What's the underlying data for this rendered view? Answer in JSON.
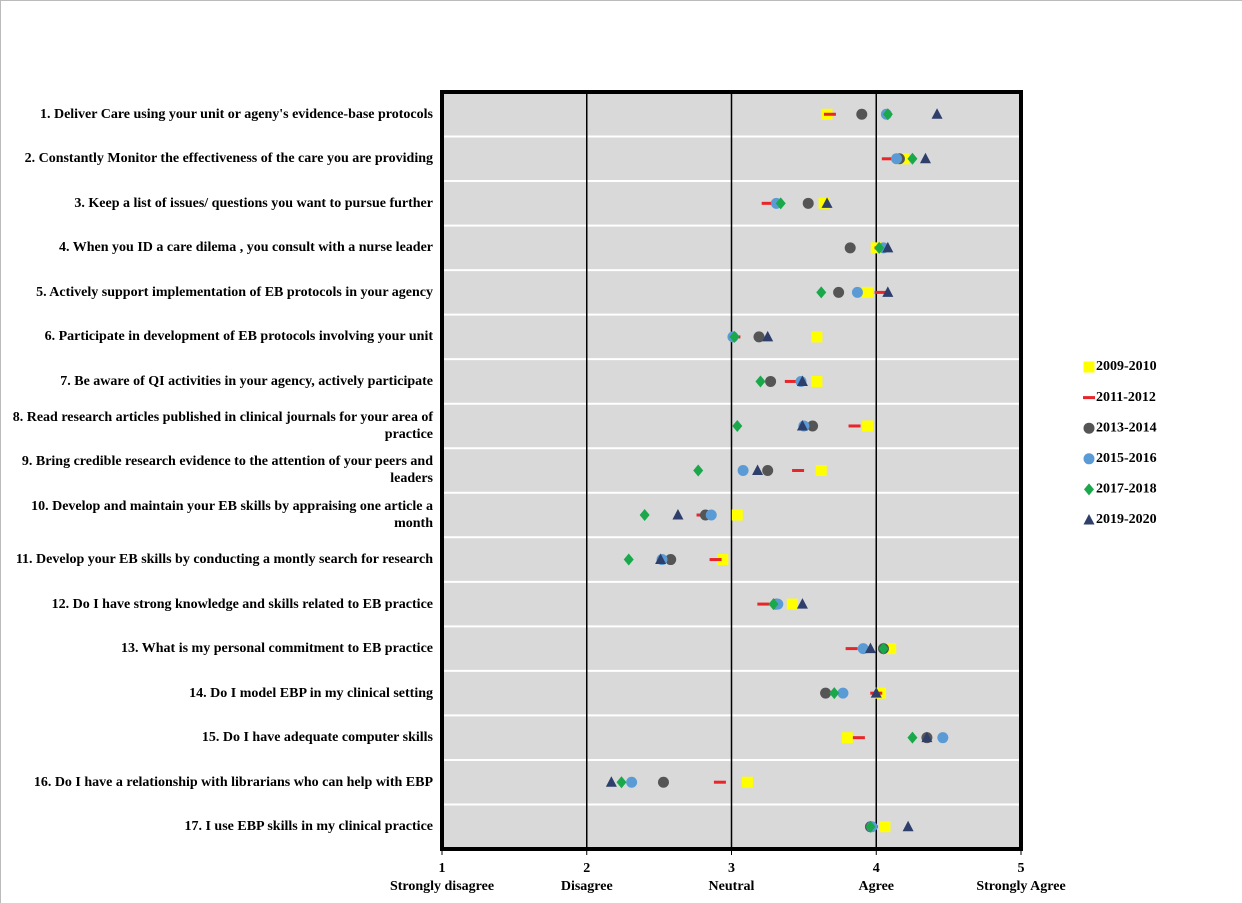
{
  "chart_data": {
    "type": "dot",
    "categories": [
      "1. Deliver Care using your unit or ageny's evidence-base protocols",
      "2. Constantly Monitor the effectiveness of the care you are providing",
      "3. Keep a list of issues/ questions you want to pursue further",
      "4. When you ID a care dilema , you consult with a nurse leader",
      "5. Actively support implementation of EB protocols in your agency",
      "6. Participate in development of EB protocols involving your unit",
      "7. Be aware of QI activities in your agency, actively participate",
      "8. Read research articles published in clinical journals for your area of practice",
      "9. Bring credible research evidence to the attention of your peers and leaders",
      "10. Develop and maintain your EB skills by appraising one article a month",
      "11. Develop your EB skills by conducting a montly search for research",
      "12. Do I have strong knowledge and skills related to EB practice",
      "13. What is my personal commitment to EB practice",
      "14. Do I model EBP in my clinical setting",
      "15. Do I have adequate computer skills",
      "16. Do I have a relationship with librarians who can help with EBP",
      "17. I use EBP skills in my clinical practice"
    ],
    "series": [
      {
        "name": "2009-2010",
        "color": "#ffff00",
        "marker": "square",
        "values": [
          3.66,
          4.19,
          3.64,
          4.0,
          3.94,
          3.59,
          3.59,
          3.94,
          3.62,
          3.04,
          2.94,
          3.42,
          4.1,
          4.03,
          3.8,
          3.11,
          4.06
        ]
      },
      {
        "name": "2011-2012",
        "color": "#e8262a",
        "marker": "dash",
        "values": [
          3.68,
          4.08,
          3.25,
          4.03,
          4.03,
          3.02,
          3.41,
          3.85,
          3.46,
          2.8,
          2.89,
          3.22,
          3.83,
          4.0,
          3.88,
          2.92,
          3.97
        ]
      },
      {
        "name": "2013-2014",
        "color": "#555555",
        "marker": "circle",
        "values": [
          3.9,
          4.16,
          3.53,
          3.82,
          3.74,
          3.19,
          3.27,
          3.56,
          3.25,
          2.82,
          2.58,
          3.31,
          4.05,
          3.65,
          4.35,
          2.53,
          3.96
        ]
      },
      {
        "name": "2015-2016",
        "color": "#5b9bd5",
        "marker": "circle",
        "values": [
          4.07,
          4.14,
          3.31,
          4.05,
          3.87,
          3.01,
          3.48,
          3.5,
          3.08,
          2.86,
          2.52,
          3.32,
          3.91,
          3.77,
          4.46,
          2.31,
          3.97
        ]
      },
      {
        "name": "2017-2018",
        "color": "#1aa84b",
        "marker": "diamond",
        "values": [
          4.08,
          4.25,
          3.34,
          4.02,
          3.62,
          3.02,
          3.2,
          3.04,
          2.77,
          2.4,
          2.29,
          3.29,
          4.05,
          3.71,
          4.25,
          2.24,
          3.96
        ]
      },
      {
        "name": "2019-2020",
        "color": "#2e3f6b",
        "marker": "triangle",
        "values": [
          4.42,
          4.34,
          3.66,
          4.08,
          4.08,
          3.25,
          3.49,
          3.49,
          3.18,
          2.63,
          2.51,
          3.49,
          3.96,
          4.0,
          4.35,
          2.17,
          4.22
        ]
      }
    ],
    "xlim": [
      1,
      5
    ],
    "xticks": [
      1,
      2,
      3,
      4,
      5
    ],
    "x_scale_labels": [
      "Strongly disagree",
      "Disagree",
      "Neutral",
      "Agree",
      "Strongly Agree"
    ],
    "grid": true,
    "legend": "right"
  }
}
